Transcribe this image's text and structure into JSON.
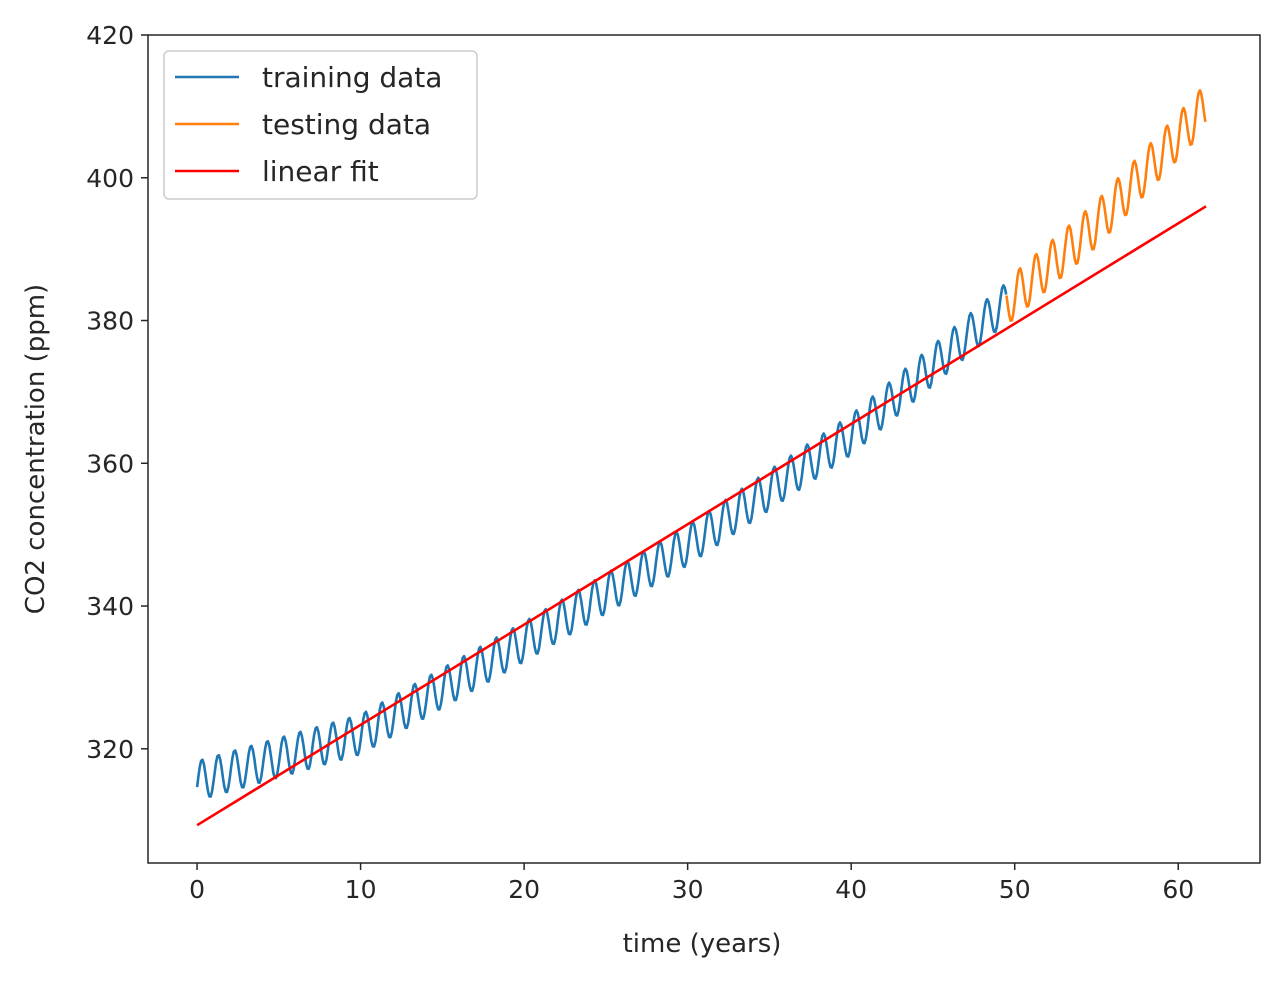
{
  "chart_data": {
    "type": "line",
    "title": "",
    "xlabel": "time (years)",
    "ylabel": "CO2 concentration (ppm)",
    "xlim": [
      -3,
      65
    ],
    "ylim": [
      304,
      420
    ],
    "xticks": [
      0,
      10,
      20,
      30,
      40,
      50,
      60
    ],
    "yticks": [
      320,
      340,
      360,
      380,
      400,
      420
    ],
    "grid": false,
    "legend_position": "top-left",
    "series": [
      {
        "name": "training data",
        "color": "#1f77b4",
        "style": "seasonal",
        "x_start": 0.0,
        "x_end": 49.5,
        "step": 0.0833,
        "trend": [
          [
            0,
            315.5
          ],
          [
            10,
            322.0
          ],
          [
            20,
            335.0
          ],
          [
            30,
            348.5
          ],
          [
            40,
            364.0
          ],
          [
            49.5,
            382.5
          ]
        ],
        "amplitude": 2.8
      },
      {
        "name": "testing data",
        "color": "#ff7f0e",
        "style": "seasonal",
        "x_start": 49.5,
        "x_end": 61.7,
        "step": 0.0833,
        "trend": [
          [
            49.5,
            382.5
          ],
          [
            55,
            393.5
          ],
          [
            61.7,
            410.0
          ]
        ],
        "amplitude": 3.2
      },
      {
        "name": "linear fit",
        "color": "#ff0000",
        "style": "line",
        "x": [
          0,
          61.7
        ],
        "y": [
          309.3,
          396.0
        ]
      }
    ]
  }
}
